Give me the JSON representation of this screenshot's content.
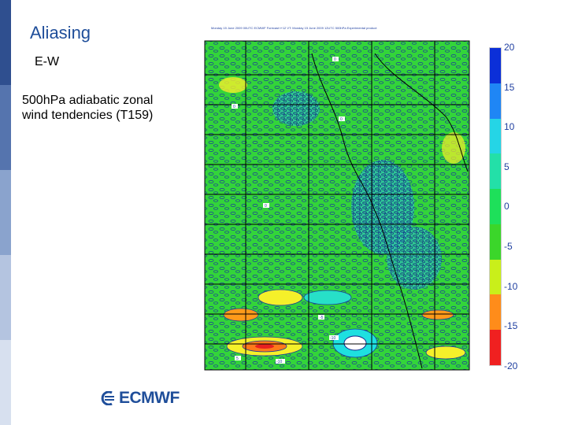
{
  "slide": {
    "title": "Aliasing",
    "subtitle": "E-W",
    "description": "500hPa adiabatic zonal wind tendencies (T159)"
  },
  "logo": {
    "text": "ECMWF"
  },
  "map": {
    "header": "Monday 15 June 2009 00UTC ECMWF Forecast t+12 VT: Monday 15 June 2009 12UTC 500hPa Experimental product",
    "colorbar": {
      "labels": [
        "20",
        "15",
        "10",
        "5",
        "0",
        "-5",
        "-10",
        "-15",
        "-20"
      ],
      "colors": [
        "#0b2fd8",
        "#1f86f5",
        "#25d5e6",
        "#23e0a8",
        "#1ee05a",
        "#3bd62a",
        "#c9ef1a",
        "#ff8c1a",
        "#f02020"
      ]
    },
    "contour_labels": [
      "0",
      "-10",
      "-5",
      "5"
    ]
  }
}
